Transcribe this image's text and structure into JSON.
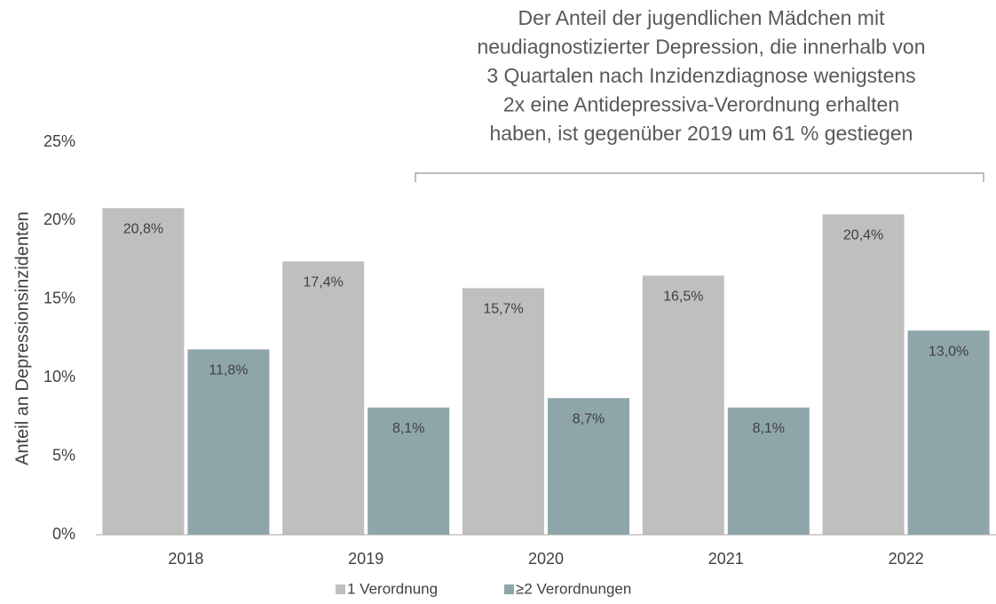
{
  "chart_data": {
    "type": "bar",
    "annotation": [
      "Der Anteil der jugendlichen Mädchen mit",
      "neudiagnostizierter Depression, die innerhalb von",
      "3 Quartalen nach Inzidenzdiagnose wenigstens",
      "2x eine Antidepressiva-Verordnung erhalten",
      "haben, ist gegenüber 2019 um 61 % gestiegen"
    ],
    "ylabel": "Anteil an Depressionsinzidenten",
    "categories": [
      "2018",
      "2019",
      "2020",
      "2021",
      "2022"
    ],
    "series": [
      {
        "name": "1 Verordnung",
        "color": "#bfbfbf",
        "values": [
          20.8,
          17.4,
          15.7,
          16.5,
          20.4
        ],
        "value_labels": [
          "20,8%",
          "17,4%",
          "15,7%",
          "16,5%",
          "20,4%"
        ]
      },
      {
        "name": "≥2 Verordnungen",
        "color": "#8ea5a9",
        "values": [
          11.8,
          8.1,
          8.7,
          8.1,
          13.0
        ],
        "value_labels": [
          "11,8%",
          "8,1%",
          "8,7%",
          "8,1%",
          "13,0%"
        ]
      }
    ],
    "ylim": [
      0,
      25
    ],
    "yticks": [
      {
        "value": 0,
        "label": "0%"
      },
      {
        "value": 5,
        "label": "5%"
      },
      {
        "value": 10,
        "label": "10%"
      },
      {
        "value": 15,
        "label": "15%"
      },
      {
        "value": 20,
        "label": "20%"
      },
      {
        "value": 25,
        "label": "25%"
      }
    ],
    "legend": "bottom"
  }
}
